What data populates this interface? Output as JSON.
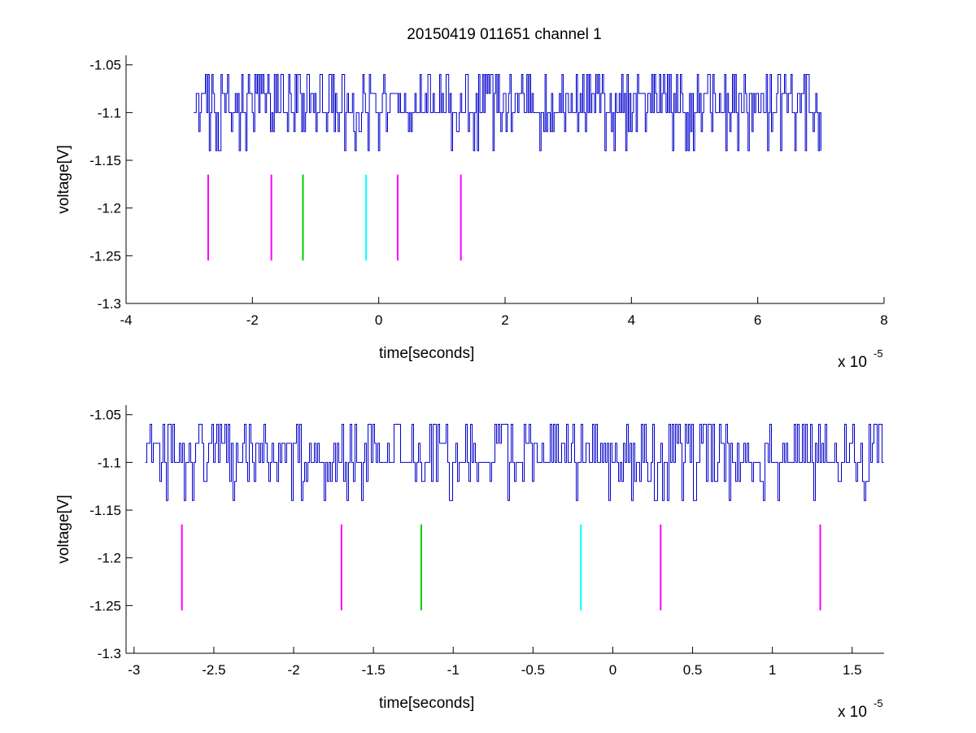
{
  "title": "20150419 011651 channel 1",
  "chart_data": [
    {
      "type": "line",
      "title": "20150419 011651 channel 1",
      "xlabel": "time[seconds]",
      "ylabel": "voltage[V]",
      "x_multiplier_label": "x 10",
      "x_multiplier_exponent": "-5",
      "xlim": [
        -4e-05,
        8e-05
      ],
      "ylim": [
        -1.3,
        -1.04
      ],
      "xticks": [
        -4e-05,
        -2e-05,
        0,
        2e-05,
        4e-05,
        6e-05,
        8e-05
      ],
      "xtick_labels": [
        "-4",
        "-2",
        "0",
        "2",
        "4",
        "6",
        "8"
      ],
      "yticks": [
        -1.3,
        -1.25,
        -1.2,
        -1.15,
        -1.1,
        -1.05
      ],
      "ytick_labels": [
        "-1.3",
        "-1.25",
        "-1.2",
        "-1.15",
        "-1.1",
        "-1.05"
      ],
      "grid": false,
      "series": [
        {
          "color": "#0000cc",
          "x_range": [
            -2.93e-05,
            7e-05
          ],
          "levels": [
            -1.14,
            -1.12,
            -1.1,
            -1.08,
            -1.06
          ],
          "baseline": -1.1
        }
      ],
      "markers": [
        {
          "x": -2.7e-05,
          "y_range": [
            -1.255,
            -1.165
          ],
          "color": "#ff00ff"
        },
        {
          "x": -1.7e-05,
          "y_range": [
            -1.255,
            -1.165
          ],
          "color": "#ff00ff"
        },
        {
          "x": -1.2e-05,
          "y_range": [
            -1.255,
            -1.165
          ],
          "color": "#00cc00"
        },
        {
          "x": -2e-06,
          "y_range": [
            -1.255,
            -1.165
          ],
          "color": "#00ffff"
        },
        {
          "x": 3e-06,
          "y_range": [
            -1.255,
            -1.165
          ],
          "color": "#ff00ff"
        },
        {
          "x": 1.3e-05,
          "y_range": [
            -1.255,
            -1.165
          ],
          "color": "#ff00ff"
        }
      ]
    },
    {
      "type": "line",
      "title": "",
      "xlabel": "time[seconds]",
      "ylabel": "voltage[V]",
      "x_multiplier_label": "x 10",
      "x_multiplier_exponent": "-5",
      "xlim": [
        -3.05e-05,
        1.7e-05
      ],
      "ylim": [
        -1.3,
        -1.04
      ],
      "xticks": [
        -3e-05,
        -2.5e-05,
        -2e-05,
        -1.5e-05,
        -1e-05,
        -5e-06,
        0,
        5e-06,
        1e-05,
        1.5e-05
      ],
      "xtick_labels": [
        "-3",
        "-2.5",
        "-2",
        "-1.5",
        "-1",
        "-0.5",
        "0",
        "0.5",
        "1",
        "1.5"
      ],
      "yticks": [
        -1.3,
        -1.25,
        -1.2,
        -1.15,
        -1.1,
        -1.05
      ],
      "ytick_labels": [
        "-1.3",
        "-1.25",
        "-1.2",
        "-1.15",
        "-1.1",
        "-1.05"
      ],
      "grid": false,
      "series": [
        {
          "color": "#0000cc",
          "x_range": [
            -2.93e-05,
            1.7e-05
          ],
          "levels": [
            -1.14,
            -1.12,
            -1.1,
            -1.08,
            -1.06
          ],
          "baseline": -1.1
        }
      ],
      "markers": [
        {
          "x": -2.7e-05,
          "y_range": [
            -1.255,
            -1.165
          ],
          "color": "#ff00ff"
        },
        {
          "x": -1.7e-05,
          "y_range": [
            -1.255,
            -1.165
          ],
          "color": "#ff00ff"
        },
        {
          "x": -1.2e-05,
          "y_range": [
            -1.255,
            -1.165
          ],
          "color": "#00cc00"
        },
        {
          "x": -2e-06,
          "y_range": [
            -1.255,
            -1.165
          ],
          "color": "#00ffff"
        },
        {
          "x": 3e-06,
          "y_range": [
            -1.255,
            -1.165
          ],
          "color": "#ff00ff"
        },
        {
          "x": 1.3e-05,
          "y_range": [
            -1.255,
            -1.165
          ],
          "color": "#ff00ff"
        }
      ]
    }
  ]
}
